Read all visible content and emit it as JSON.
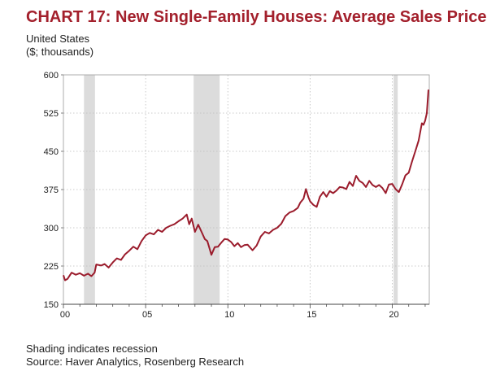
{
  "chart_data": {
    "type": "line",
    "title": "CHART 17: New Single-Family Houses: Average Sales Price",
    "subtitle_lines": [
      "United States",
      "($; thousands)"
    ],
    "footnotes": [
      "Shading indicates recession",
      "Source: Haver Analytics, Rosenberg Research"
    ],
    "xlim": [
      2000,
      2022.25
    ],
    "ylim": [
      150,
      600
    ],
    "y_ticks": [
      150,
      225,
      300,
      375,
      450,
      525,
      600
    ],
    "x_ticks": [
      {
        "value": 2000,
        "label": "00"
      },
      {
        "value": 2005,
        "label": "05"
      },
      {
        "value": 2010,
        "label": "10"
      },
      {
        "value": 2015,
        "label": "15"
      },
      {
        "value": 2020,
        "label": "20"
      }
    ],
    "grid": true,
    "recessions": [
      [
        2001.25,
        2001.92
      ],
      [
        2007.92,
        2009.5
      ],
      [
        2020.08,
        2020.33
      ]
    ],
    "series": [
      {
        "color": "#9b1c2c",
        "points": [
          [
            2000.0,
            207
          ],
          [
            2000.1,
            197
          ],
          [
            2000.25,
            200
          ],
          [
            2000.5,
            212
          ],
          [
            2000.75,
            208
          ],
          [
            2001.0,
            211
          ],
          [
            2001.25,
            206
          ],
          [
            2001.5,
            210
          ],
          [
            2001.7,
            205
          ],
          [
            2001.9,
            212
          ],
          [
            2002.0,
            228
          ],
          [
            2002.3,
            226
          ],
          [
            2002.5,
            229
          ],
          [
            2002.75,
            222
          ],
          [
            2003.0,
            232
          ],
          [
            2003.25,
            240
          ],
          [
            2003.5,
            237
          ],
          [
            2003.75,
            248
          ],
          [
            2004.0,
            255
          ],
          [
            2004.25,
            263
          ],
          [
            2004.5,
            258
          ],
          [
            2004.75,
            274
          ],
          [
            2005.0,
            285
          ],
          [
            2005.25,
            290
          ],
          [
            2005.5,
            287
          ],
          [
            2005.75,
            296
          ],
          [
            2006.0,
            292
          ],
          [
            2006.25,
            300
          ],
          [
            2006.5,
            304
          ],
          [
            2006.75,
            307
          ],
          [
            2007.0,
            313
          ],
          [
            2007.25,
            318
          ],
          [
            2007.5,
            326
          ],
          [
            2007.65,
            307
          ],
          [
            2007.8,
            318
          ],
          [
            2008.0,
            292
          ],
          [
            2008.2,
            306
          ],
          [
            2008.4,
            292
          ],
          [
            2008.6,
            278
          ],
          [
            2008.75,
            274
          ],
          [
            2008.9,
            258
          ],
          [
            2009.0,
            247
          ],
          [
            2009.2,
            262
          ],
          [
            2009.4,
            263
          ],
          [
            2009.6,
            271
          ],
          [
            2009.8,
            278
          ],
          [
            2010.0,
            277
          ],
          [
            2010.2,
            272
          ],
          [
            2010.4,
            264
          ],
          [
            2010.6,
            270
          ],
          [
            2010.8,
            262
          ],
          [
            2011.0,
            266
          ],
          [
            2011.2,
            267
          ],
          [
            2011.5,
            256
          ],
          [
            2011.75,
            265
          ],
          [
            2012.0,
            283
          ],
          [
            2012.25,
            292
          ],
          [
            2012.5,
            289
          ],
          [
            2012.75,
            296
          ],
          [
            2013.0,
            300
          ],
          [
            2013.25,
            308
          ],
          [
            2013.5,
            323
          ],
          [
            2013.75,
            330
          ],
          [
            2014.0,
            333
          ],
          [
            2014.25,
            339
          ],
          [
            2014.4,
            349
          ],
          [
            2014.6,
            357
          ],
          [
            2014.75,
            376
          ],
          [
            2014.9,
            360
          ],
          [
            2015.0,
            352
          ],
          [
            2015.2,
            345
          ],
          [
            2015.4,
            341
          ],
          [
            2015.6,
            361
          ],
          [
            2015.8,
            370
          ],
          [
            2016.0,
            361
          ],
          [
            2016.2,
            372
          ],
          [
            2016.4,
            368
          ],
          [
            2016.6,
            373
          ],
          [
            2016.8,
            380
          ],
          [
            2017.0,
            379
          ],
          [
            2017.2,
            376
          ],
          [
            2017.4,
            390
          ],
          [
            2017.6,
            382
          ],
          [
            2017.8,
            402
          ],
          [
            2018.0,
            392
          ],
          [
            2018.2,
            388
          ],
          [
            2018.4,
            380
          ],
          [
            2018.6,
            392
          ],
          [
            2018.8,
            384
          ],
          [
            2019.0,
            380
          ],
          [
            2019.2,
            384
          ],
          [
            2019.4,
            378
          ],
          [
            2019.6,
            368
          ],
          [
            2019.8,
            385
          ],
          [
            2020.0,
            386
          ],
          [
            2020.2,
            376
          ],
          [
            2020.4,
            370
          ],
          [
            2020.6,
            385
          ],
          [
            2020.8,
            403
          ],
          [
            2021.0,
            408
          ],
          [
            2021.2,
            430
          ],
          [
            2021.4,
            450
          ],
          [
            2021.6,
            471
          ],
          [
            2021.7,
            488
          ],
          [
            2021.8,
            505
          ],
          [
            2021.9,
            502
          ],
          [
            2022.0,
            510
          ],
          [
            2022.1,
            525
          ],
          [
            2022.2,
            571
          ]
        ]
      }
    ]
  }
}
